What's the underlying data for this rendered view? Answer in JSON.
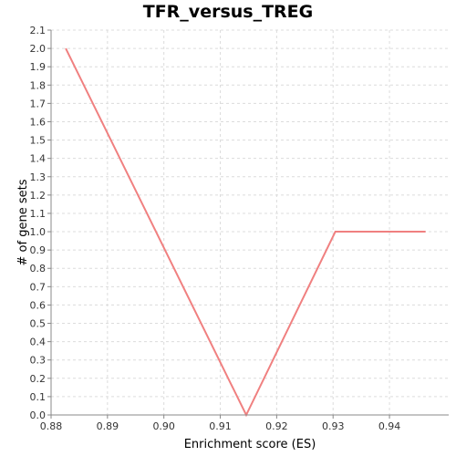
{
  "chart_data": {
    "type": "line",
    "title": "TFR_versus_TREG",
    "xlabel": "Enrichment score (ES)",
    "ylabel": "# of gene sets",
    "xlim": [
      0.88,
      0.9505
    ],
    "ylim": [
      0,
      2.1
    ],
    "xticks": [
      "0.88",
      "0.89",
      "0.90",
      "0.91",
      "0.92",
      "0.93",
      "0.94"
    ],
    "yticks": [
      "0.0",
      "0.1",
      "0.2",
      "0.3",
      "0.4",
      "0.5",
      "0.6",
      "0.7",
      "0.8",
      "0.9",
      "1.0",
      "1.1",
      "1.2",
      "1.3",
      "1.4",
      "1.5",
      "1.6",
      "1.7",
      "1.8",
      "1.9",
      "2.0",
      "2.1"
    ],
    "grid": true,
    "series": [
      {
        "color": "#f08080",
        "x": [
          0.8826,
          0.9146,
          0.9304,
          0.9464
        ],
        "y": [
          2.0,
          0.0,
          1.0,
          1.0
        ]
      }
    ]
  }
}
